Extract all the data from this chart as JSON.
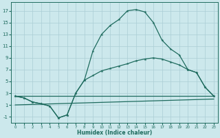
{
  "xlabel": "Humidex (Indice chaleur)",
  "bg_color": "#cce8ec",
  "line_color": "#1e6b5e",
  "grid_color": "#aacdd4",
  "xlim": [
    -0.5,
    23.5
  ],
  "ylim": [
    -2.0,
    18.5
  ],
  "xticks": [
    0,
    1,
    2,
    3,
    4,
    5,
    6,
    7,
    8,
    9,
    10,
    11,
    12,
    13,
    14,
    15,
    16,
    17,
    18,
    19,
    20,
    21,
    22,
    23
  ],
  "yticks": [
    -1,
    1,
    3,
    5,
    7,
    9,
    11,
    13,
    15,
    17
  ],
  "line1_x": [
    0,
    1,
    2,
    3,
    4,
    5,
    6,
    7,
    8,
    9,
    10,
    11,
    12,
    13,
    14,
    15,
    16,
    17,
    18,
    19,
    20,
    21,
    22,
    23
  ],
  "line1_y": [
    2.5,
    2.2,
    1.5,
    1.2,
    0.8,
    -1.2,
    -0.7,
    3.0,
    5.2,
    10.2,
    13.0,
    14.5,
    15.5,
    17.0,
    17.2,
    16.8,
    15.0,
    12.0,
    10.5,
    9.5,
    7.0,
    6.5,
    4.0,
    2.5
  ],
  "line2_x": [
    0,
    1,
    2,
    3,
    4,
    5,
    6,
    7,
    8,
    9,
    10,
    11,
    12,
    13,
    14,
    15,
    16,
    17,
    18,
    19,
    20,
    21,
    22,
    23
  ],
  "line2_y": [
    2.5,
    2.2,
    1.5,
    1.2,
    0.8,
    -1.2,
    -0.7,
    3.0,
    5.2,
    6.0,
    6.8,
    7.2,
    7.6,
    8.0,
    8.5,
    8.8,
    9.0,
    8.8,
    8.3,
    7.8,
    7.0,
    6.5,
    4.0,
    2.5
  ],
  "line3_x": [
    0,
    23
  ],
  "line3_y": [
    2.5,
    2.5
  ],
  "line4_x": [
    0,
    23
  ],
  "line4_y": [
    1.0,
    2.0
  ]
}
